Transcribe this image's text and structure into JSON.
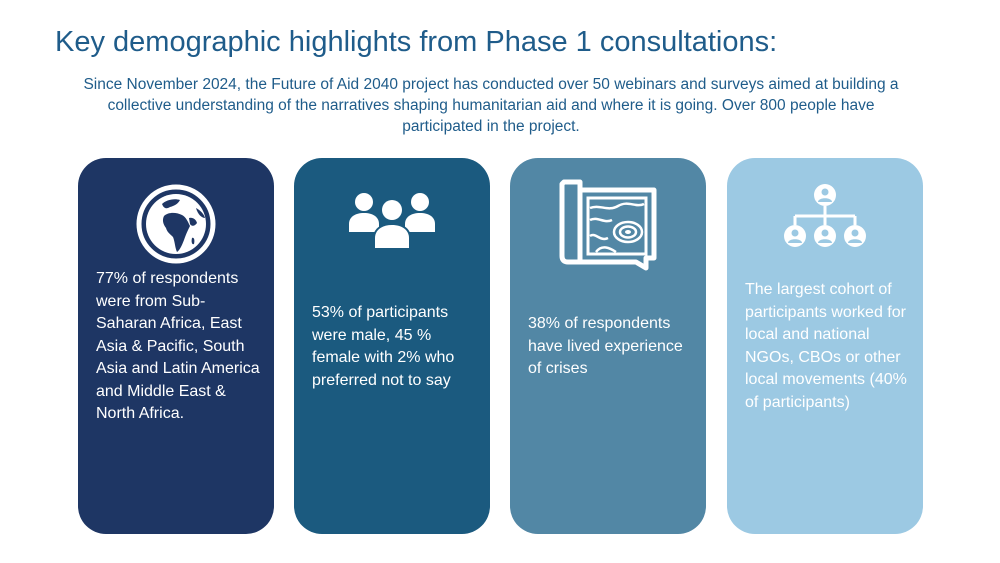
{
  "slide": {
    "title": "Key demographic highlights from Phase 1 consultations:",
    "intro": "Since November 2024, the Future of Aid 2040 project has conducted over 50 webinars and surveys aimed at building a collective understanding of the narratives shaping humanitarian aid and where it is going. Over 800 people have participated in the project."
  },
  "cards": [
    {
      "icon": "globe-icon",
      "color": "#1e3664",
      "text": "77% of respondents were from Sub-Saharan Africa, East Asia & Pacific, South Asia and Latin America and Middle East & North Africa."
    },
    {
      "icon": "people-group-icon",
      "color": "#1b5a7f",
      "text": "53% of participants were male, 45 % female with 2% who preferred not to say"
    },
    {
      "icon": "map-scroll-icon",
      "color": "#5287a5",
      "text": "38% of respondents have lived experience of crises"
    },
    {
      "icon": "org-chart-icon",
      "color": "#9cc9e3",
      "text": "The largest cohort of participants worked for local and national NGOs, CBOs or other local movements (40% of participants)"
    }
  ]
}
